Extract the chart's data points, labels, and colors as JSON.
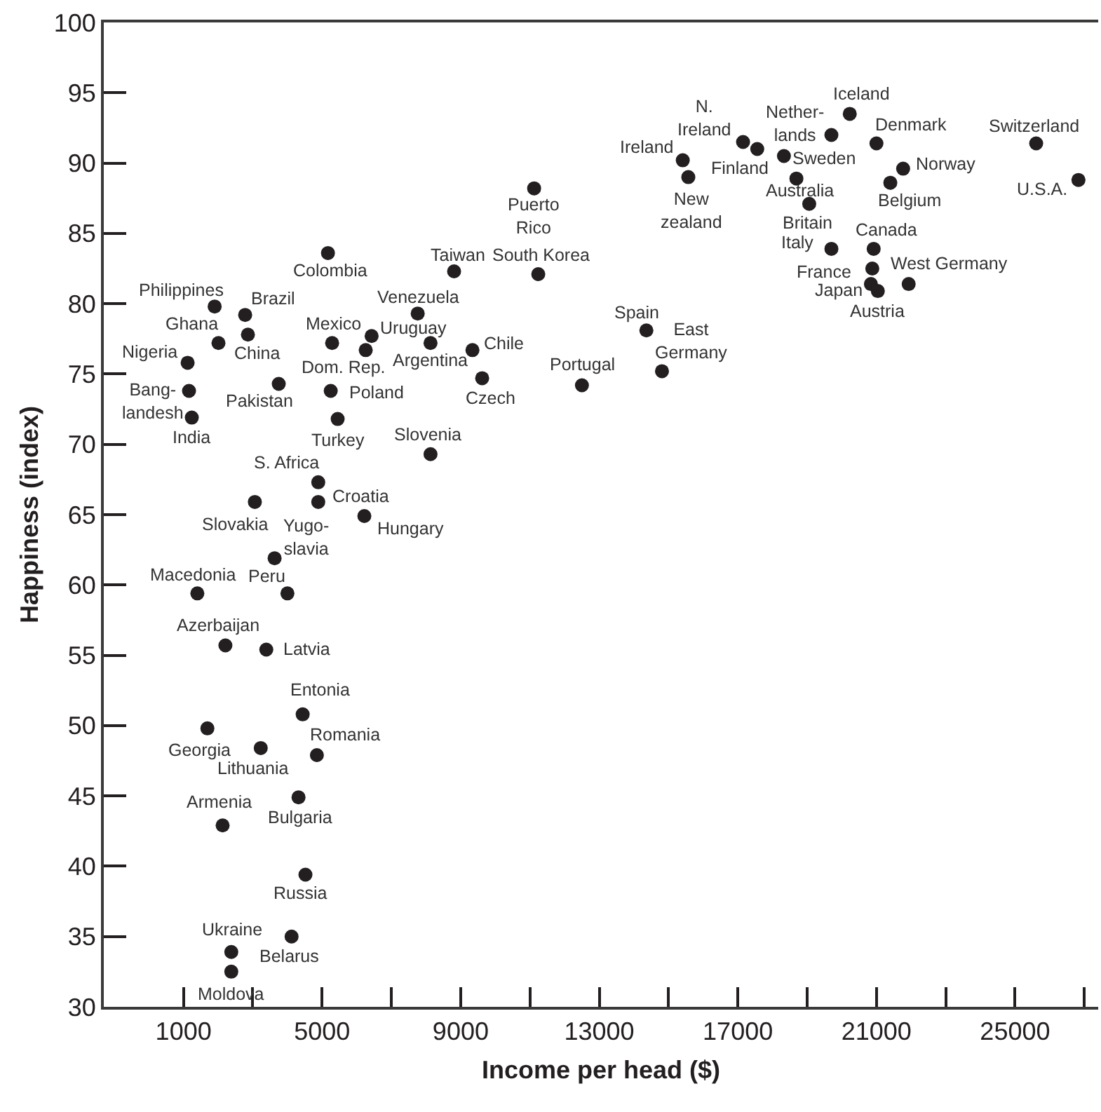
{
  "chart_data": {
    "type": "scatter",
    "xlabel": "Income per head ($)",
    "ylabel": "Happiness (index)",
    "xlim": [
      -1300,
      27400
    ],
    "ylim": [
      30,
      100
    ],
    "xticks": [
      1000,
      {
        "value": 3000,
        "label": null
      },
      5000,
      {
        "value": 7000,
        "label": null
      },
      9000,
      {
        "value": 11000,
        "label": null
      },
      13000,
      {
        "value": 15000,
        "label": null
      },
      17000,
      {
        "value": 19000,
        "label": null
      },
      21000,
      {
        "value": 23000,
        "label": null
      },
      25000,
      {
        "value": 27000,
        "label": null
      }
    ],
    "yticks": [
      30,
      35,
      40,
      45,
      50,
      55,
      60,
      65,
      70,
      75,
      80,
      85,
      90,
      95,
      100
    ],
    "grid": false,
    "marker": "circle",
    "series": [
      {
        "color": "#231f20",
        "x": [
          1900,
          2780,
          2010,
          2860,
          1120,
          1160,
          1240,
          3750,
          5170,
          5290,
          6430,
          6260,
          5250,
          5450,
          7760,
          8130,
          8810,
          11240,
          11120,
          9340,
          9620,
          12500,
          8130,
          4890,
          4890,
          3060,
          6220,
          3630,
          1400,
          4000,
          2210,
          3390,
          4440,
          1690,
          3230,
          4850,
          4320,
          2130,
          4520,
          2380,
          4120,
          2380,
          15410,
          15570,
          17150,
          17560,
          18330,
          18690,
          19060,
          19700,
          20230,
          21000,
          21770,
          21400,
          19700,
          20920,
          20880,
          20840,
          21040,
          21930,
          25610,
          26830,
          14360,
          14810
        ],
        "values": [
          79.8,
          79.2,
          77.2,
          77.8,
          75.8,
          73.8,
          71.9,
          74.3,
          83.6,
          77.2,
          77.7,
          76.7,
          73.8,
          71.8,
          79.3,
          77.2,
          82.3,
          82.1,
          88.2,
          76.7,
          74.7,
          74.2,
          69.3,
          67.3,
          65.9,
          65.9,
          64.9,
          61.9,
          59.4,
          59.4,
          55.7,
          55.4,
          50.8,
          49.8,
          48.4,
          47.9,
          44.9,
          42.9,
          39.4,
          33.9,
          35.0,
          32.5,
          90.2,
          89.0,
          91.5,
          91.0,
          90.5,
          88.9,
          87.1,
          92.0,
          93.5,
          91.4,
          89.6,
          88.6,
          83.9,
          83.9,
          82.5,
          81.4,
          80.9,
          81.4,
          91.4,
          88.8,
          78.1,
          75.2
        ]
      }
    ],
    "annotations": [
      {
        "text": "Philippines",
        "x": 1900,
        "y": 79.8
      },
      {
        "text": "Brazil",
        "x": 2780,
        "y": 79.2
      },
      {
        "text": "Ghana",
        "x": 2010,
        "y": 77.2
      },
      {
        "text": "China",
        "x": 2860,
        "y": 77.8
      },
      {
        "text": "Nigeria",
        "x": 1120,
        "y": 75.8
      },
      {
        "text": "Bang-\nlandesh",
        "x": 1160,
        "y": 73.8
      },
      {
        "text": "India",
        "x": 1240,
        "y": 71.9
      },
      {
        "text": "Pakistan",
        "x": 3750,
        "y": 74.3
      },
      {
        "text": "Colombia",
        "x": 5170,
        "y": 83.6
      },
      {
        "text": "Mexico",
        "x": 5290,
        "y": 77.2
      },
      {
        "text": "Uruguay",
        "x": 6430,
        "y": 77.7
      },
      {
        "text": "Dom. Rep.",
        "x": 6260,
        "y": 76.7
      },
      {
        "text": "Poland",
        "x": 5250,
        "y": 73.8
      },
      {
        "text": "Turkey",
        "x": 5450,
        "y": 71.8
      },
      {
        "text": "Venezuela",
        "x": 7760,
        "y": 79.3
      },
      {
        "text": "Argentina",
        "x": 8130,
        "y": 77.2
      },
      {
        "text": "Taiwan",
        "x": 8810,
        "y": 82.3
      },
      {
        "text": "South Korea",
        "x": 11240,
        "y": 82.1
      },
      {
        "text": "Puerto\nRico",
        "x": 11120,
        "y": 88.2
      },
      {
        "text": "Chile",
        "x": 9340,
        "y": 76.7
      },
      {
        "text": "Czech",
        "x": 9620,
        "y": 74.7
      },
      {
        "text": "Portugal",
        "x": 12500,
        "y": 74.2
      },
      {
        "text": "Slovenia",
        "x": 8130,
        "y": 69.3
      },
      {
        "text": "S. Africa",
        "x": 4890,
        "y": 67.3
      },
      {
        "text": "Croatia",
        "x": 4890,
        "y": 65.9
      },
      {
        "text": "Slovakia",
        "x": 3060,
        "y": 65.9
      },
      {
        "text": "Hungary",
        "x": 6220,
        "y": 64.9
      },
      {
        "text": "Yugo-\nslavia",
        "x": 3630,
        "y": 61.9
      },
      {
        "text": "Macedonia",
        "x": 1400,
        "y": 59.4
      },
      {
        "text": "Peru",
        "x": 4000,
        "y": 59.4
      },
      {
        "text": "Azerbaijan",
        "x": 2210,
        "y": 55.7
      },
      {
        "text": "Latvia",
        "x": 3390,
        "y": 55.4
      },
      {
        "text": "Entonia",
        "x": 4440,
        "y": 50.8
      },
      {
        "text": "Georgia",
        "x": 1690,
        "y": 49.8
      },
      {
        "text": "Lithuania",
        "x": 3230,
        "y": 48.4
      },
      {
        "text": "Romania",
        "x": 4850,
        "y": 47.9
      },
      {
        "text": "Bulgaria",
        "x": 4320,
        "y": 44.9
      },
      {
        "text": "Armenia",
        "x": 2130,
        "y": 42.9
      },
      {
        "text": "Russia",
        "x": 4520,
        "y": 39.4
      },
      {
        "text": "Ukraine",
        "x": 2380,
        "y": 33.9
      },
      {
        "text": "Belarus",
        "x": 4120,
        "y": 35.0
      },
      {
        "text": "Moldova",
        "x": 2380,
        "y": 32.5
      },
      {
        "text": "Ireland",
        "x": 15410,
        "y": 90.2
      },
      {
        "text": "New\nzealand",
        "x": 15570,
        "y": 89.0
      },
      {
        "text": "N.\nIreland",
        "x": 17150,
        "y": 91.5
      },
      {
        "text": "Finland",
        "x": 17560,
        "y": 91.0
      },
      {
        "text": "Sweden",
        "x": 18330,
        "y": 90.5
      },
      {
        "text": "Australia",
        "x": 18690,
        "y": 88.9
      },
      {
        "text": "Britain",
        "x": 19060,
        "y": 87.1
      },
      {
        "text": "Nether-\nlands",
        "x": 19700,
        "y": 92.0
      },
      {
        "text": "Iceland",
        "x": 20230,
        "y": 93.5
      },
      {
        "text": "Denmark",
        "x": 21000,
        "y": 91.4
      },
      {
        "text": "Norway",
        "x": 21770,
        "y": 89.6
      },
      {
        "text": "Belgium",
        "x": 21400,
        "y": 88.6
      },
      {
        "text": "Italy",
        "x": 19700,
        "y": 83.9
      },
      {
        "text": "Canada",
        "x": 20920,
        "y": 83.9
      },
      {
        "text": "France",
        "x": 20880,
        "y": 82.5
      },
      {
        "text": "Japan",
        "x": 20840,
        "y": 81.4
      },
      {
        "text": "Austria",
        "x": 21040,
        "y": 80.9
      },
      {
        "text": "West Germany",
        "x": 21930,
        "y": 81.4
      },
      {
        "text": "Switzerland",
        "x": 25610,
        "y": 91.4
      },
      {
        "text": "U.S.A.",
        "x": 26830,
        "y": 88.8
      },
      {
        "text": "Spain",
        "x": 14360,
        "y": 78.1
      },
      {
        "text": "East\nGermany",
        "x": 14810,
        "y": 75.2
      }
    ]
  }
}
